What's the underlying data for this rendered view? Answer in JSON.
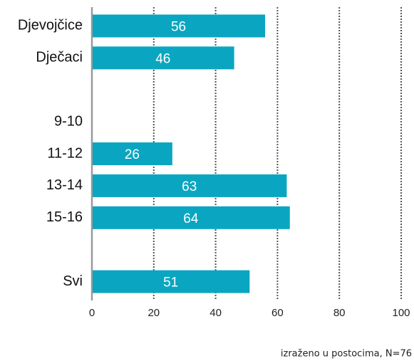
{
  "chart_data": {
    "type": "hbar",
    "categories": [
      "Djevojčice",
      "Dječaci",
      null,
      "9-10",
      "11-12",
      "13-14",
      "15-16",
      null,
      "Svi"
    ],
    "values": [
      56,
      46,
      null,
      null,
      26,
      63,
      64,
      null,
      51
    ],
    "color": "#0aa6c1",
    "xlim": [
      0,
      100
    ],
    "xticks": [
      0,
      20,
      40,
      60,
      80,
      100
    ],
    "grid": true,
    "annotation": "izraženo u postocima, N=76"
  }
}
